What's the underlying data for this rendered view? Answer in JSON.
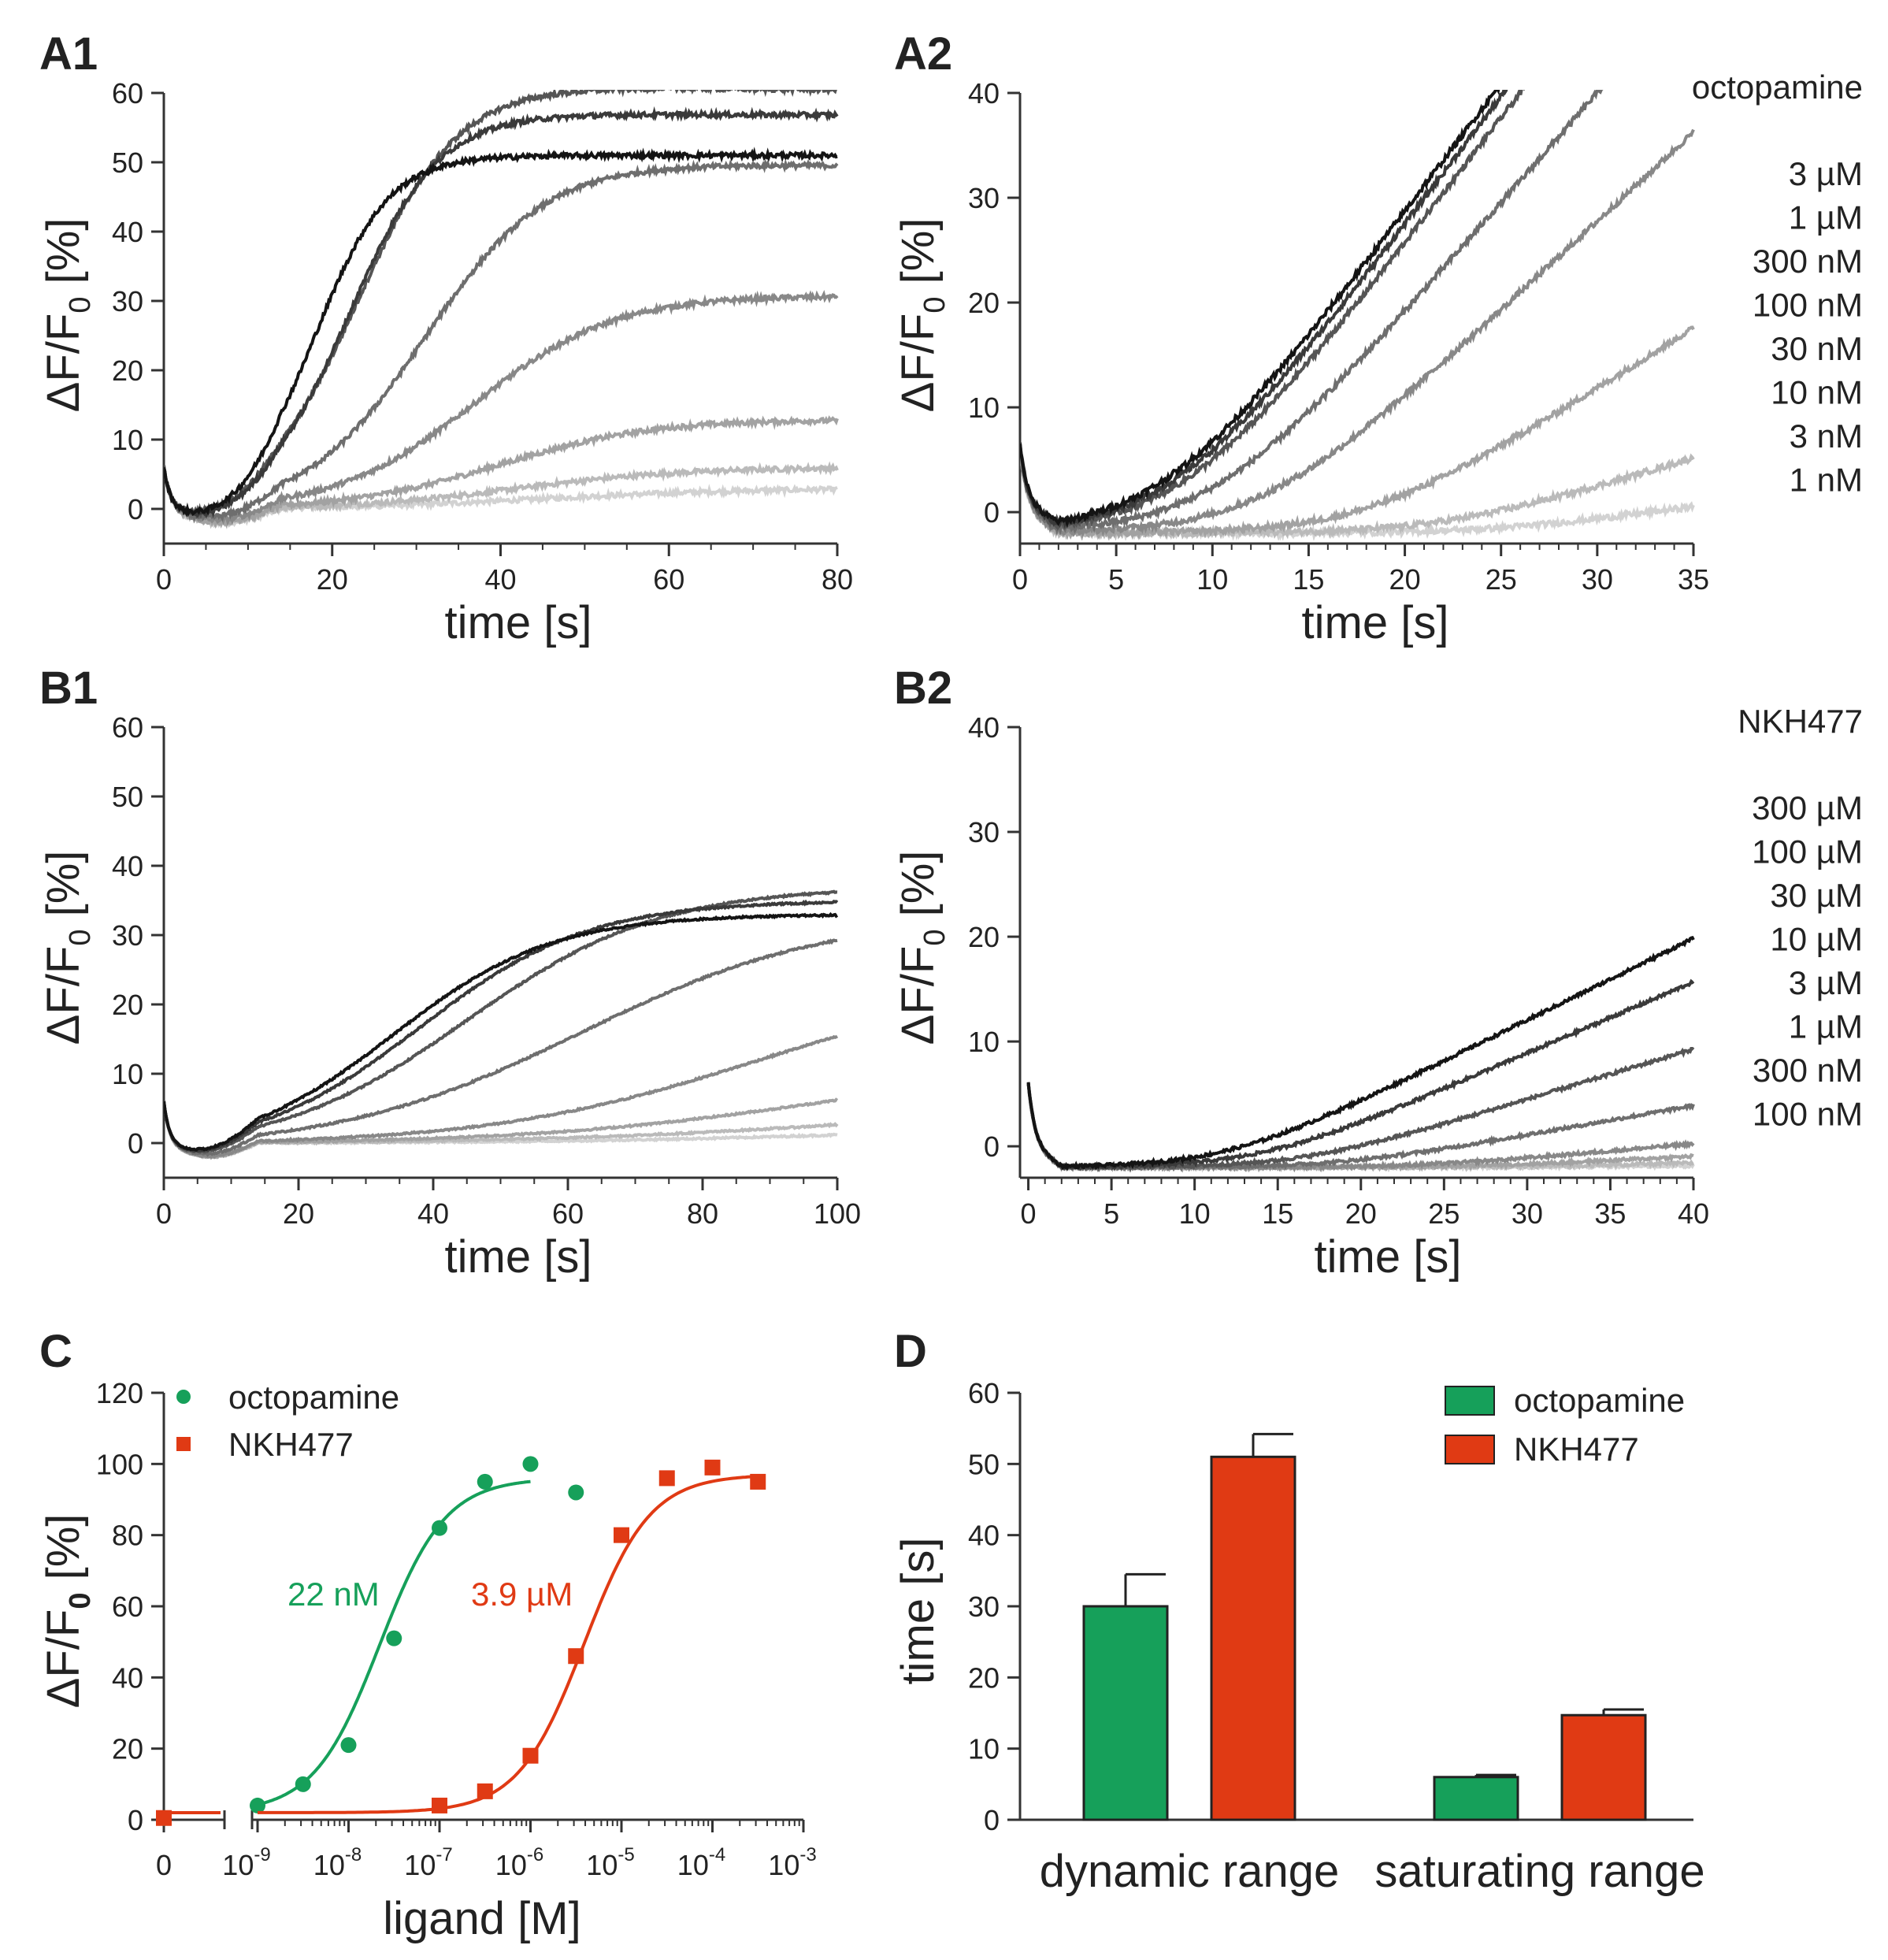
{
  "colors": {
    "octopamine": "#16a05a",
    "nkh477": "#e03a14",
    "axis": "#333333",
    "trace_greys": [
      "#141414",
      "#3a3a3a",
      "#555555",
      "#6e6e6e",
      "#888888",
      "#a2a2a2",
      "#bababa",
      "#d2d2d2"
    ]
  },
  "chart_data": [
    {
      "id": "A1",
      "type": "line",
      "panel_label": "A1",
      "xlabel": "time [s]",
      "ylabel_parts": [
        "ΔF/F",
        "0",
        " [%]"
      ],
      "xlim": [
        0,
        80
      ],
      "ylim": [
        -5,
        60
      ],
      "xticks": [
        0,
        20,
        40,
        60,
        80
      ],
      "yticks": [
        0,
        10,
        20,
        30,
        40,
        50,
        60
      ],
      "series": [
        {
          "values": {
            "plateau": 51,
            "t_half": 18,
            "k": 0.23,
            "drop": 0.0
          }
        },
        {
          "values": {
            "plateau": 57,
            "t_half": 22,
            "k": 0.19,
            "drop": 0.01
          }
        },
        {
          "values": {
            "plateau": 61,
            "t_half": 23,
            "k": 0.17,
            "drop": 0.03
          }
        },
        {
          "values": {
            "plateau": 50,
            "t_half": 31,
            "k": 0.14,
            "drop": 0.03
          }
        },
        {
          "values": {
            "plateau": 31,
            "t_half": 37,
            "k": 0.12,
            "drop": 0.02
          }
        },
        {
          "values": {
            "plateau": 13,
            "t_half": 40,
            "k": 0.11,
            "drop": 0.01
          }
        },
        {
          "values": {
            "plateau": 6,
            "t_half": 42,
            "k": 0.1,
            "drop": 0.0
          }
        },
        {
          "values": {
            "plateau": 3,
            "t_half": 45,
            "k": 0.08,
            "drop": 0.0
          }
        }
      ]
    },
    {
      "id": "A2",
      "type": "line",
      "panel_label": "A2",
      "xlabel": "time [s]",
      "ylabel_parts": [
        "ΔF/F",
        "0",
        " [%]"
      ],
      "xlim": [
        0,
        35
      ],
      "ylim": [
        -3,
        40
      ],
      "xticks": [
        0,
        5,
        10,
        15,
        20,
        25,
        30,
        35
      ],
      "yticks": [
        0,
        10,
        20,
        30,
        40
      ],
      "compound": "octopamine",
      "concentrations": [
        "3 µM",
        "1 µM",
        "300 nM",
        "100 nM",
        "30 nM",
        "10 nM",
        "3 nM",
        "1 nM"
      ],
      "series": [
        {
          "values": {
            "x0": 7.5,
            "slope": 2.45
          }
        },
        {
          "values": {
            "x0": 8.0,
            "slope": 2.45
          }
        },
        {
          "values": {
            "x0": 8.5,
            "slope": 2.4
          }
        },
        {
          "values": {
            "x0": 10.0,
            "slope": 2.1
          }
        },
        {
          "values": {
            "x0": 12.5,
            "slope": 1.7
          }
        },
        {
          "values": {
            "x0": 18.0,
            "slope": 1.15
          }
        },
        {
          "values": {
            "x0": 22.0,
            "slope": 0.55
          }
        },
        {
          "values": {
            "x0": 25.0,
            "slope": 0.25
          }
        }
      ]
    },
    {
      "id": "B1",
      "type": "line",
      "panel_label": "B1",
      "xlabel": "time [s]",
      "ylabel_parts": [
        "ΔF/F",
        "0",
        " [%]"
      ],
      "xlim": [
        0,
        100
      ],
      "ylim": [
        -5,
        60
      ],
      "xticks": [
        0,
        20,
        40,
        60,
        80,
        100
      ],
      "yticks": [
        0,
        10,
        20,
        30,
        40,
        50,
        60
      ],
      "series": [
        {
          "values": {
            "plateau": 33,
            "t_half": 34,
            "k": 0.085,
            "drop": 0
          }
        },
        {
          "values": {
            "plateau": 35,
            "t_half": 38,
            "k": 0.08,
            "drop": 0
          }
        },
        {
          "values": {
            "plateau": 37,
            "t_half": 45,
            "k": 0.07,
            "drop": 0
          }
        },
        {
          "values": {
            "plateau": 33,
            "t_half": 62,
            "k": 0.055,
            "drop": 0
          }
        },
        {
          "values": {
            "plateau": 24,
            "t_half": 88,
            "k": 0.05,
            "drop": 0
          }
        },
        {
          "values": {
            "plateau": 12,
            "t_half": 98,
            "k": 0.045,
            "drop": 0
          }
        },
        {
          "values": {
            "plateau": 6,
            "t_half": 105,
            "k": 0.04,
            "drop": 0
          }
        },
        {
          "values": {
            "plateau": 3,
            "t_half": 110,
            "k": 0.04,
            "drop": 0
          }
        }
      ]
    },
    {
      "id": "B2",
      "type": "line",
      "panel_label": "B2",
      "xlabel": "time [s]",
      "ylabel_parts": [
        "ΔF/F",
        "0",
        " [%]"
      ],
      "xlim": [
        -0.5,
        40
      ],
      "ylim": [
        -3,
        40
      ],
      "xticks": [
        0,
        5,
        10,
        15,
        20,
        25,
        30,
        35,
        40
      ],
      "yticks": [
        0,
        10,
        20,
        30,
        40
      ],
      "compound": "NKH477",
      "concentrations": [
        "300 µM",
        "100 µM",
        "30 µM",
        "10 µM",
        "3 µM",
        "1 µM",
        "300 nM",
        "100 nM"
      ],
      "series": [
        {
          "values": {
            "x0": 12.0,
            "slope": 0.78
          }
        },
        {
          "values": {
            "x0": 14.0,
            "slope": 0.68
          }
        },
        {
          "values": {
            "x0": 16.5,
            "slope": 0.48
          }
        },
        {
          "values": {
            "x0": 19.0,
            "slope": 0.28
          }
        },
        {
          "values": {
            "x0": 24.0,
            "slope": 0.14
          }
        },
        {
          "values": {
            "x0": 27.0,
            "slope": 0.08
          }
        },
        {
          "values": {
            "x0": 30.0,
            "slope": 0.04
          }
        },
        {
          "values": {
            "x0": 33.0,
            "slope": 0.02
          }
        }
      ]
    },
    {
      "id": "C",
      "type": "scatter",
      "panel_label": "C",
      "xlabel": "ligand [M]",
      "ylabel_parts": [
        "ΔF/F",
        "0",
        " [%]"
      ],
      "xscale": "log",
      "xlim_log": [
        -9,
        -3
      ],
      "ylim": [
        0,
        120
      ],
      "yticks": [
        0,
        20,
        40,
        60,
        80,
        100,
        120
      ],
      "xtick_labels": [
        {
          "base": "0",
          "exp": ""
        },
        {
          "base": "10",
          "exp": "-9"
        },
        {
          "base": "10",
          "exp": "-8"
        },
        {
          "base": "10",
          "exp": "-7"
        },
        {
          "base": "10",
          "exp": "-6"
        },
        {
          "base": "10",
          "exp": "-5"
        },
        {
          "base": "10",
          "exp": "-4"
        },
        {
          "base": "10",
          "exp": "-3"
        }
      ],
      "legend": [
        {
          "name": "octopamine",
          "marker": "circle"
        },
        {
          "name": "NKH477",
          "marker": "square"
        }
      ],
      "series": [
        {
          "name": "octopamine",
          "zero_value": 0.5,
          "log_x": [
            -9,
            -8.5,
            -8,
            -7.5,
            -7,
            -6.5,
            -6,
            -5.5
          ],
          "y": [
            4,
            10,
            21,
            51,
            82,
            95,
            100,
            92
          ],
          "fit": {
            "bottom": 2,
            "top": 96,
            "log_ec50": -7.66,
            "hill": 1.2
          },
          "ec50_label": "22 nM"
        },
        {
          "name": "NKH477",
          "zero_value": 0.5,
          "log_x": [
            -7,
            -6.5,
            -6,
            -5.5,
            -5,
            -4.5,
            -4,
            -3.5
          ],
          "y": [
            4,
            8,
            18,
            46,
            80,
            96,
            99,
            95
          ],
          "fit": {
            "bottom": 2,
            "top": 97,
            "log_ec50": -5.41,
            "hill": 1.2
          },
          "ec50_label": "3.9 µM"
        }
      ]
    },
    {
      "id": "D",
      "type": "bar",
      "panel_label": "D",
      "ylabel": "time [s]",
      "ylim": [
        0,
        60
      ],
      "yticks": [
        0,
        10,
        20,
        30,
        40,
        50,
        60
      ],
      "categories": [
        "dynamic range",
        "saturating range"
      ],
      "legend": [
        "octopamine",
        "NKH477"
      ],
      "series": [
        {
          "name": "octopamine",
          "values": [
            30,
            6
          ],
          "errors": [
            4.5,
            0.3
          ]
        },
        {
          "name": "NKH477",
          "values": [
            51,
            14.7
          ],
          "errors": [
            3.2,
            0.8
          ]
        }
      ]
    }
  ]
}
